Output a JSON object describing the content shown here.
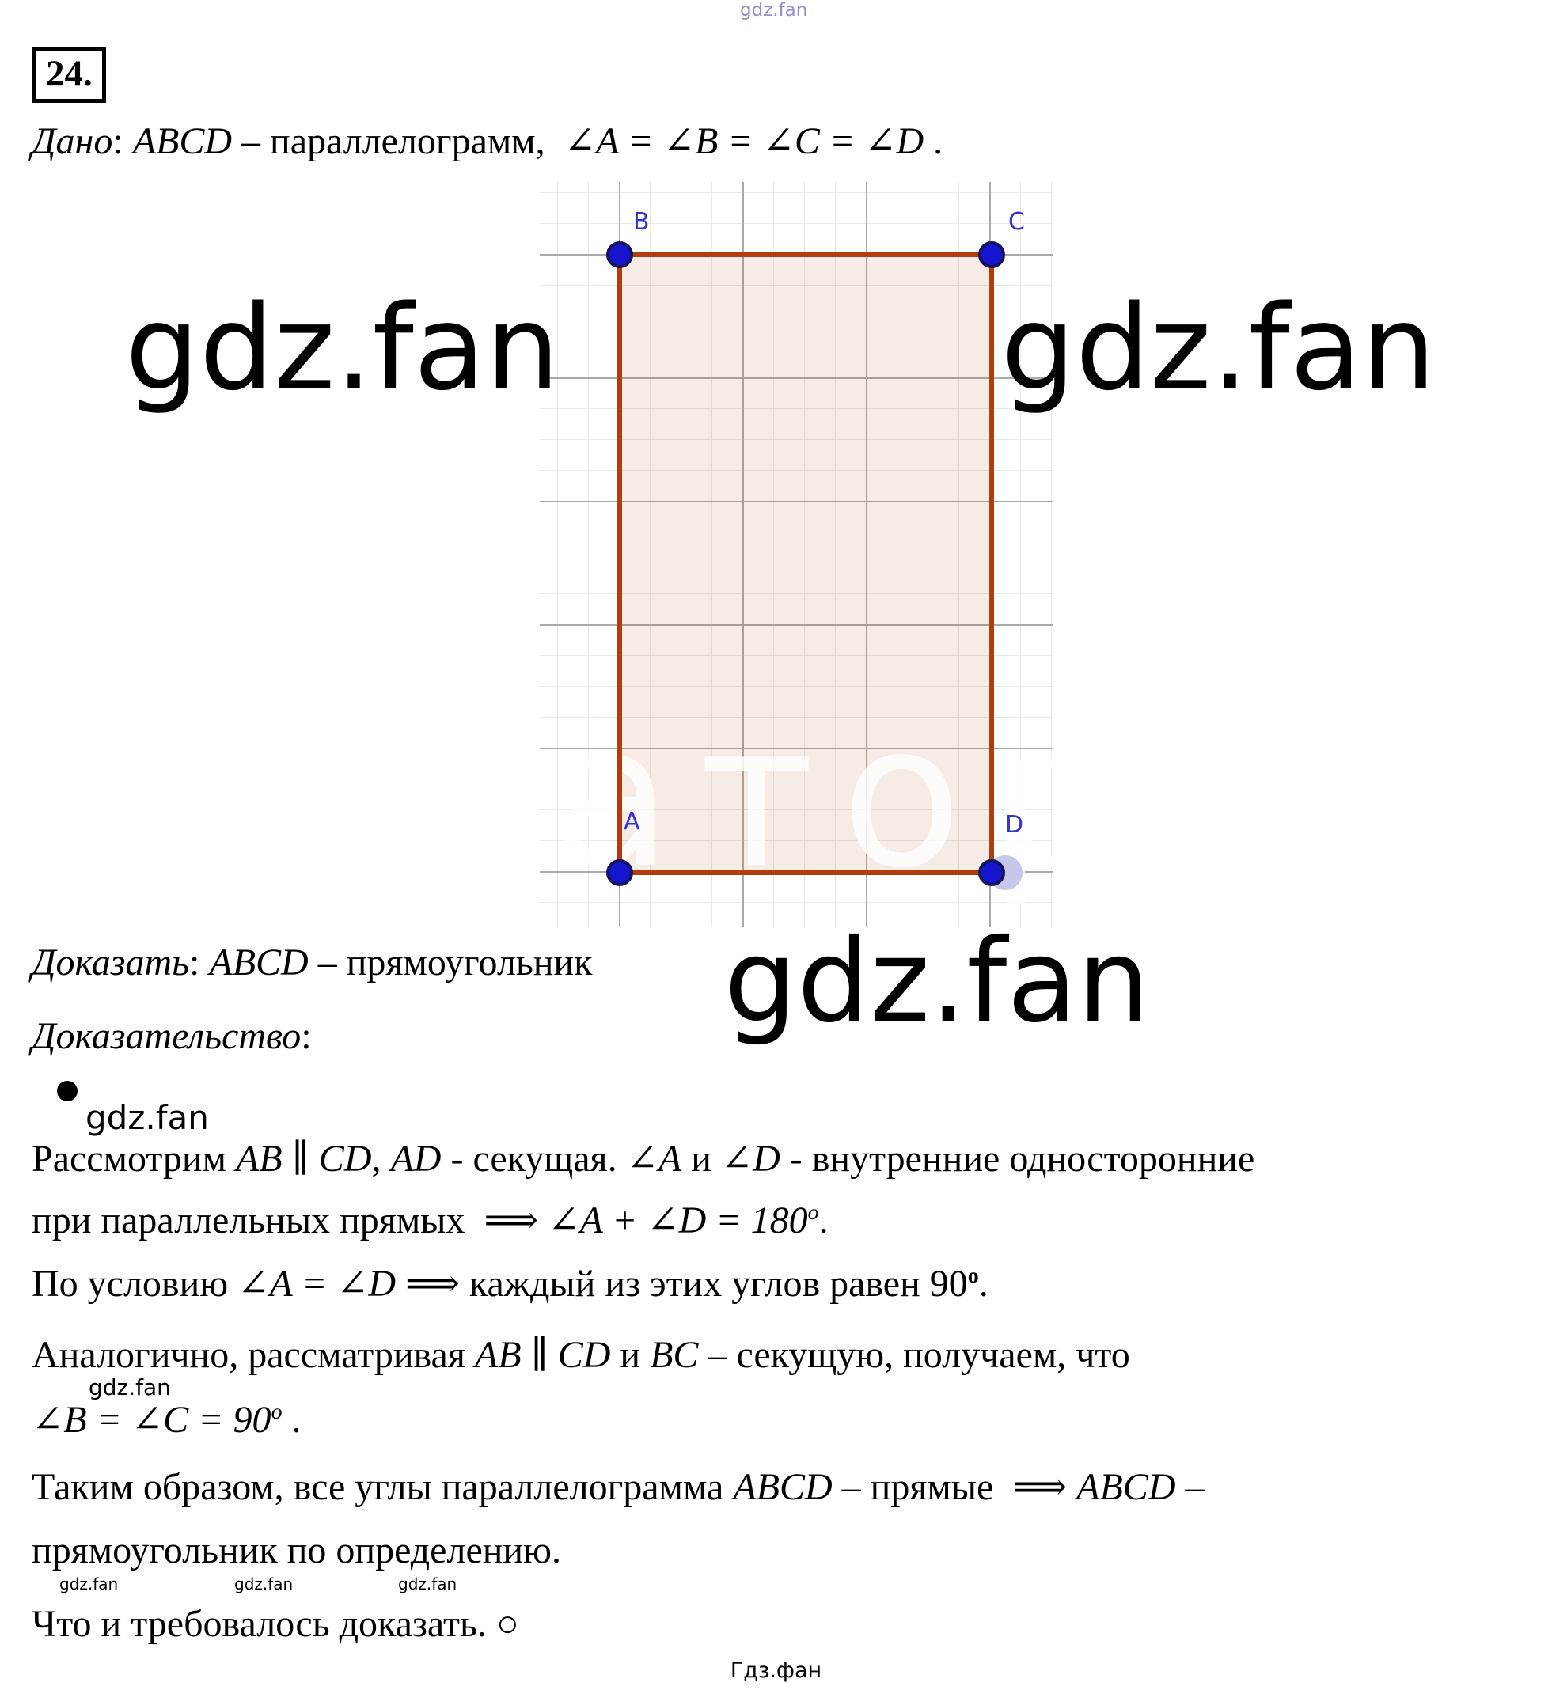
{
  "page": {
    "number_label": "24.",
    "footer": "Гдз.фан"
  },
  "watermarks": {
    "top": "gdz.fan",
    "big_left": "gdz.fan",
    "big_right": "gdz.fan",
    "big_middle": "gdz.fan",
    "small_bullet": "gdz.fan",
    "small_indent": "gdz.fan",
    "tiny_1": "gdz.fan",
    "tiny_2": "gdz.fan",
    "tiny_3": "gdz.fan",
    "figure_inner": "атор"
  },
  "figure": {
    "vertex_labels": {
      "top_left": "B",
      "top_right": "C",
      "bottom_left": "A",
      "bottom_right": "D"
    },
    "colors": {
      "edge": "#b23c0c",
      "fill": "#f5e6df",
      "point": "#1515d0",
      "point_border": "#14145a",
      "label": "#3434cf",
      "grid_minor": "#e9e9e9",
      "grid_major": "#aaaaaa",
      "highlight_d": "#c7c7e9"
    }
  },
  "problem": {
    "given": [
      {
        "t": "Дано",
        "i": true
      },
      {
        "t": ": ",
        "i": false
      },
      {
        "t": "ABCD",
        "i": true
      },
      {
        "t": " – параллелограмм,  ",
        "i": false
      },
      {
        "t": "∠A = ∠B = ∠C = ∠D",
        "i": true
      },
      {
        "t": " .",
        "i": false
      }
    ],
    "prove": [
      {
        "t": "Доказать",
        "i": true
      },
      {
        "t": ": ",
        "i": false
      },
      {
        "t": "ABCD",
        "i": true
      },
      {
        "t": " – прямоугольник",
        "i": false
      }
    ],
    "proof_heading": [
      {
        "t": "Доказательство",
        "i": true
      },
      {
        "t": ":",
        "i": false
      }
    ],
    "proof_lines": {
      "l1": [
        {
          "t": "Рассмотрим ",
          "i": false
        },
        {
          "t": "AB",
          "i": true
        },
        {
          "t": " ∥ ",
          "i": false
        },
        {
          "t": "CD",
          "i": true
        },
        {
          "t": ", ",
          "i": false
        },
        {
          "t": "AD",
          "i": true
        },
        {
          "t": " - секущая. ",
          "i": false
        },
        {
          "t": "∠A",
          "i": true
        },
        {
          "t": " и ",
          "i": false
        },
        {
          "t": "∠D",
          "i": true
        },
        {
          "t": " - внутренние односторонние",
          "i": false
        }
      ],
      "l2": [
        {
          "t": "при параллельных прямых  ⟹ ",
          "i": false
        },
        {
          "t": "∠A + ∠D = 180",
          "i": true
        },
        {
          "t": "o",
          "i": true,
          "sup": true
        },
        {
          "t": ".",
          "i": false
        }
      ],
      "l3": [
        {
          "t": "По условию ",
          "i": false
        },
        {
          "t": "∠A = ∠D",
          "i": true
        },
        {
          "t": " ⟹ каждый из этих углов равен 90",
          "i": false
        },
        {
          "t": "o",
          "i": false,
          "sup": true,
          "b": true
        },
        {
          "t": ".",
          "i": false
        }
      ],
      "l4": [
        {
          "t": "Аналогично, рассматривая ",
          "i": false
        },
        {
          "t": "AB",
          "i": true
        },
        {
          "t": " ∥ ",
          "i": false
        },
        {
          "t": "CD",
          "i": true
        },
        {
          "t": " и ",
          "i": false
        },
        {
          "t": "BC",
          "i": true
        },
        {
          "t": " – секущую, получаем, что",
          "i": false
        }
      ],
      "l5": [
        {
          "t": "∠B = ∠C = 90",
          "i": true
        },
        {
          "t": "o",
          "i": true,
          "sup": true
        },
        {
          "t": " .",
          "i": false
        }
      ],
      "l6": [
        {
          "t": "Таким образом, все углы параллелограмма ",
          "i": false
        },
        {
          "t": "ABCD",
          "i": true
        },
        {
          "t": " – прямые  ⟹ ",
          "i": false
        },
        {
          "t": "ABCD",
          "i": true
        },
        {
          "t": " –",
          "i": false
        }
      ],
      "l7": [
        {
          "t": "прямоугольник по определению.",
          "i": false
        }
      ],
      "l8": [
        {
          "t": "Что и требовалось доказать. ",
          "i": false
        },
        {
          "t": "○",
          "i": false
        }
      ]
    }
  }
}
